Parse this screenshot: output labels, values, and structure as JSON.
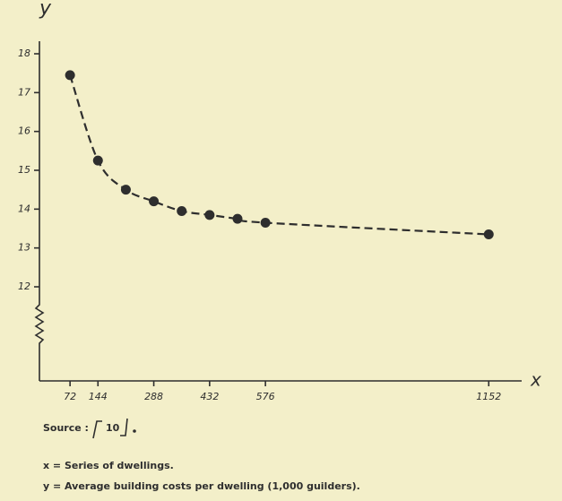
{
  "chart_data": {
    "type": "line",
    "y_label": "y",
    "x_label": "x",
    "x": [
      72,
      144,
      216,
      288,
      360,
      432,
      504,
      576,
      1152
    ],
    "values": [
      17.45,
      15.25,
      14.5,
      14.2,
      13.95,
      13.85,
      13.75,
      13.65,
      13.35
    ],
    "color": "#2e2e2e",
    "xlim": [
      0,
      1230
    ],
    "ylim": [
      12,
      18
    ],
    "xticks": [
      72,
      144,
      288,
      432,
      576,
      1152
    ],
    "yticks": [
      12,
      13,
      14,
      15,
      16,
      17,
      18
    ],
    "source_label": "Source :",
    "source_ref": "10",
    "notes": [
      "x  =  Series of dwellings.",
      "y  =  Average building costs per dwelling (1,000 guilders)."
    ]
  }
}
